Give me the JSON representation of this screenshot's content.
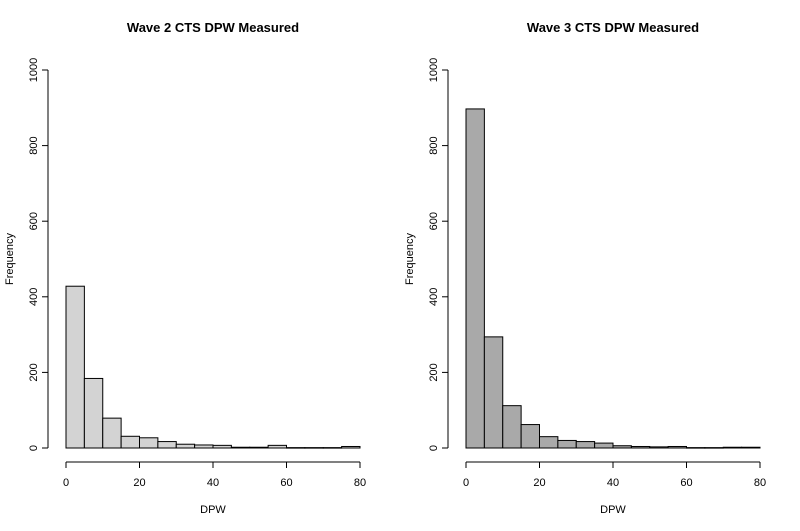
{
  "chart_data": [
    {
      "type": "bar",
      "title": "Wave 2 CTS DPW Measured",
      "xlabel": "DPW",
      "ylabel": "Frequency",
      "xlim": [
        0,
        80
      ],
      "ylim": [
        0,
        1000
      ],
      "bin_width": 5,
      "bin_edges": [
        0,
        5,
        10,
        15,
        20,
        25,
        30,
        35,
        40,
        45,
        50,
        55,
        60,
        65,
        70,
        75,
        80
      ],
      "values": [
        428,
        184,
        79,
        31,
        27,
        17,
        10,
        8,
        7,
        2,
        2,
        7,
        1,
        1,
        1,
        4
      ],
      "xticks": [
        "0",
        "20",
        "40",
        "60",
        "80"
      ],
      "yticks": [
        "0",
        "200",
        "400",
        "600",
        "800",
        "1000"
      ],
      "bar_color": "#d3d3d3",
      "grid": false
    },
    {
      "type": "bar",
      "title": "Wave 3 CTS DPW Measured",
      "xlabel": "DPW",
      "ylabel": "Frequency",
      "xlim": [
        0,
        80
      ],
      "ylim": [
        0,
        1000
      ],
      "bin_width": 5,
      "bin_edges": [
        0,
        5,
        10,
        15,
        20,
        25,
        30,
        35,
        40,
        45,
        50,
        55,
        60,
        65,
        70,
        75,
        80
      ],
      "values": [
        897,
        294,
        112,
        62,
        30,
        20,
        17,
        13,
        6,
        4,
        3,
        4,
        1,
        1,
        2,
        2
      ],
      "xticks": [
        "0",
        "20",
        "40",
        "60",
        "80"
      ],
      "yticks": [
        "0",
        "200",
        "400",
        "600",
        "800",
        "1000"
      ],
      "bar_color": "#a9a9a9",
      "grid": false
    }
  ]
}
